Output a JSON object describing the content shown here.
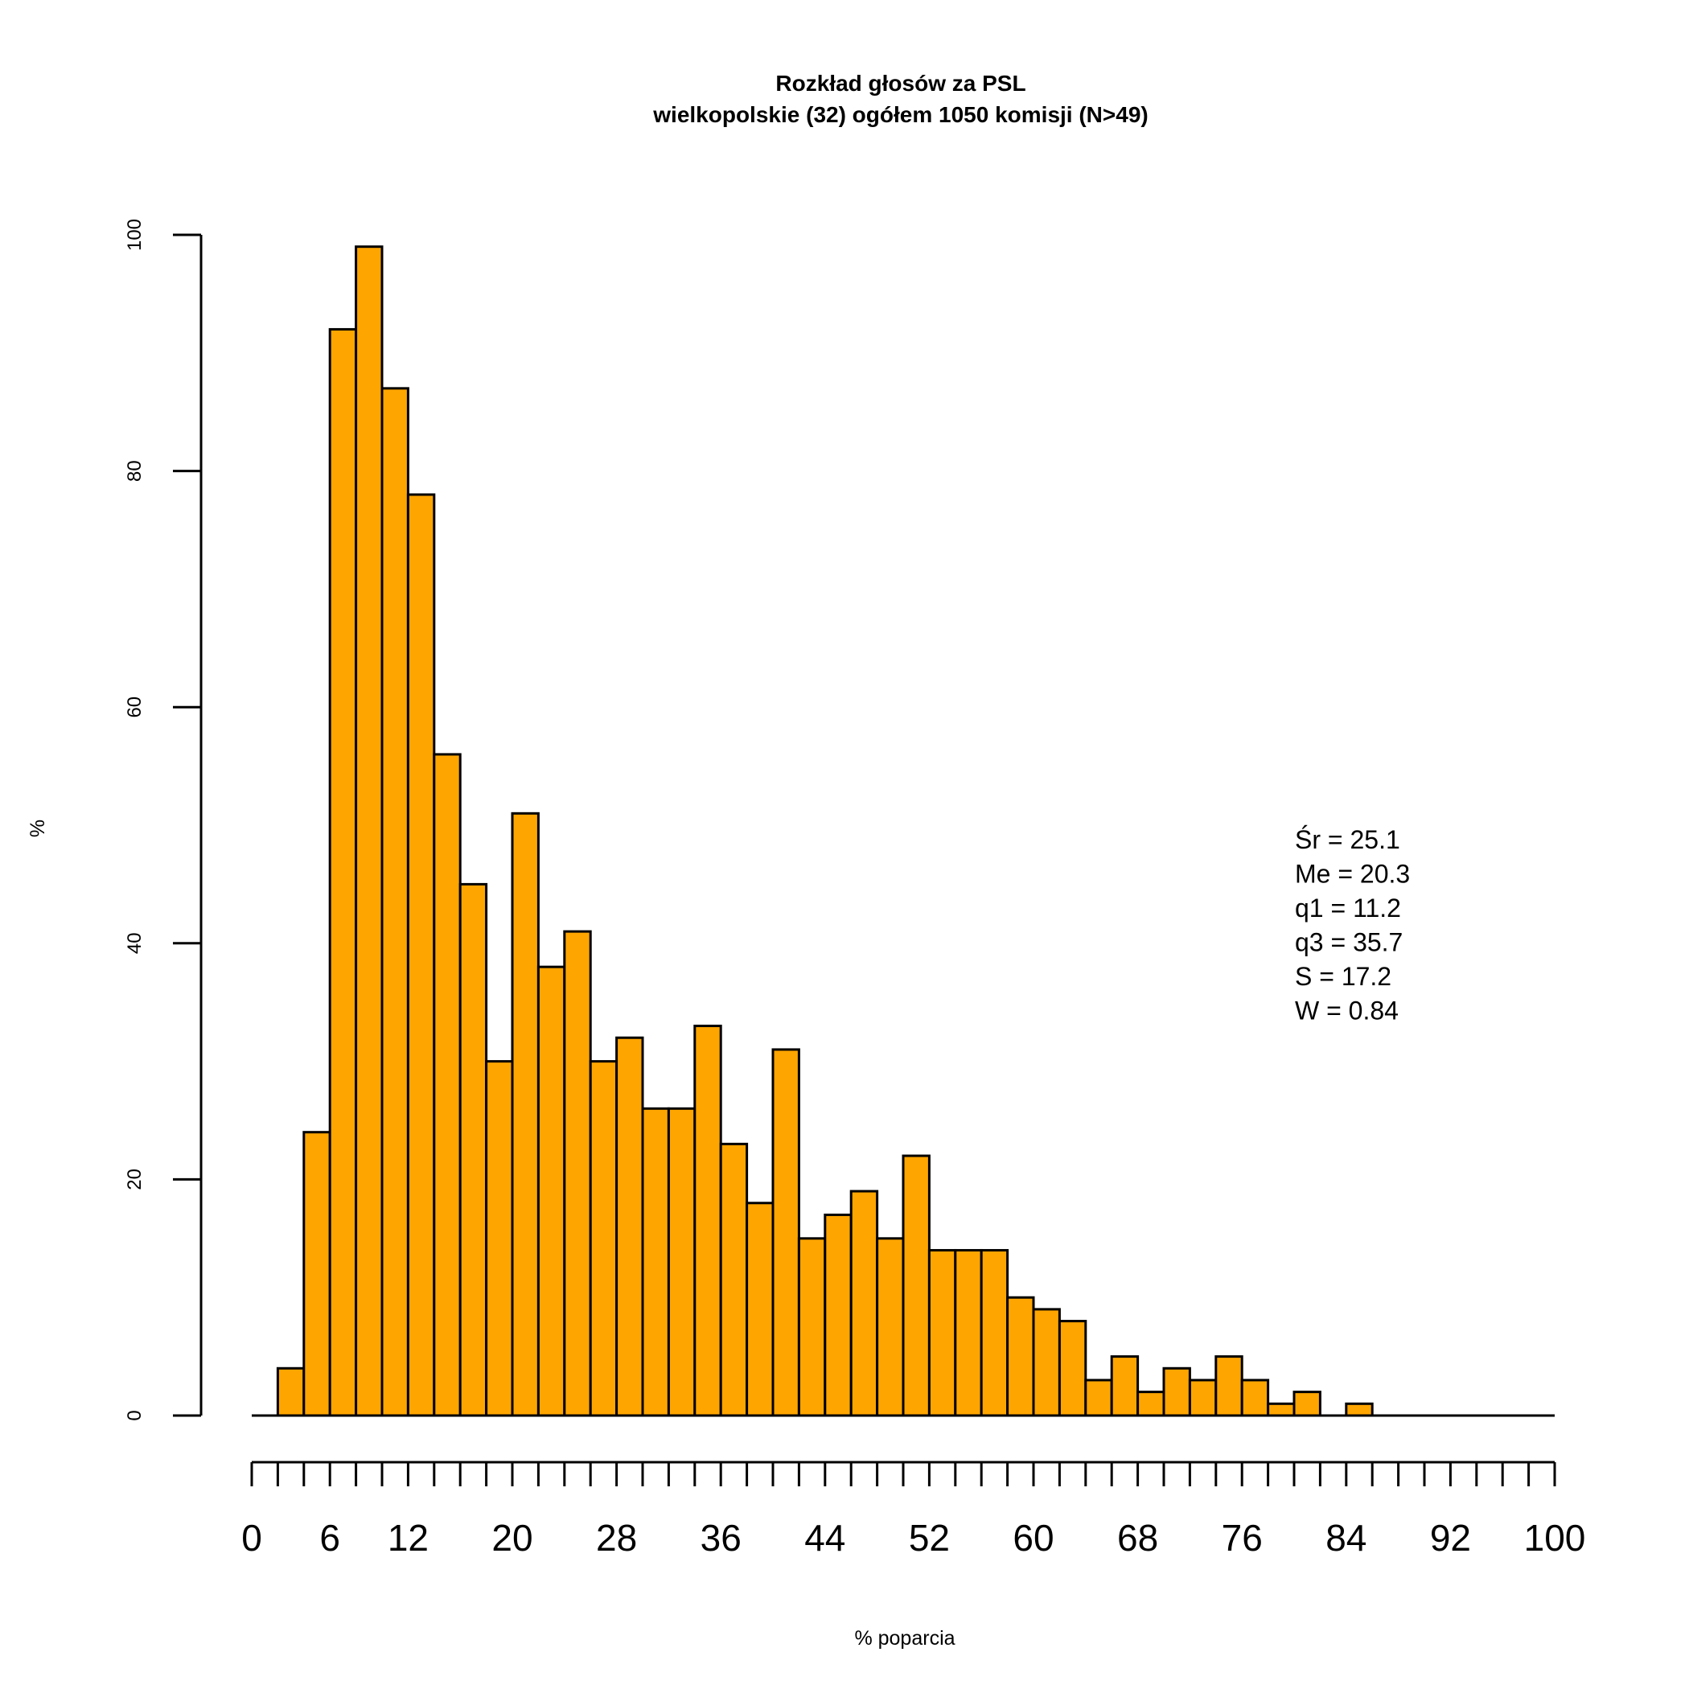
{
  "chart_data": {
    "type": "bar",
    "title": "Rozkład głosów za PSL",
    "subtitle": "wielkopolskie (32) ogółem 1050 komisji (N>49)",
    "xlabel": "% poparcia",
    "ylabel": "%",
    "bin_width": 2,
    "bin_start": 0,
    "values": [
      0,
      4,
      24,
      92,
      99,
      87,
      78,
      56,
      45,
      30,
      51,
      38,
      41,
      30,
      32,
      26,
      26,
      33,
      23,
      18,
      31,
      15,
      17,
      19,
      15,
      22,
      14,
      14,
      14,
      10,
      9,
      8,
      3,
      5,
      2,
      4,
      3,
      5,
      3,
      1,
      2,
      0,
      1,
      0,
      0,
      0,
      0,
      0,
      0,
      0
    ],
    "xlim": [
      0,
      100
    ],
    "ylim": [
      0,
      100
    ],
    "x_tick_labels": [
      "0",
      "6",
      "12",
      "20",
      "28",
      "36",
      "44",
      "52",
      "60",
      "68",
      "76",
      "84",
      "92",
      "100"
    ],
    "x_tick_values": [
      0,
      6,
      12,
      20,
      28,
      36,
      44,
      52,
      60,
      68,
      76,
      84,
      92,
      100
    ],
    "x_minor_tick_step": 2,
    "y_ticks": [
      "0",
      "20",
      "40",
      "60",
      "80",
      "100"
    ],
    "y_tick_values": [
      0,
      20,
      40,
      60,
      80,
      100
    ],
    "bar_color": "#FFA500",
    "edge_color": "#000000",
    "grid": false,
    "annotations": [
      "Śr = 25.1",
      "Me = 20.3",
      "q1 = 11.2",
      "q3 = 35.7",
      "S = 17.2",
      "W = 0.84"
    ]
  }
}
